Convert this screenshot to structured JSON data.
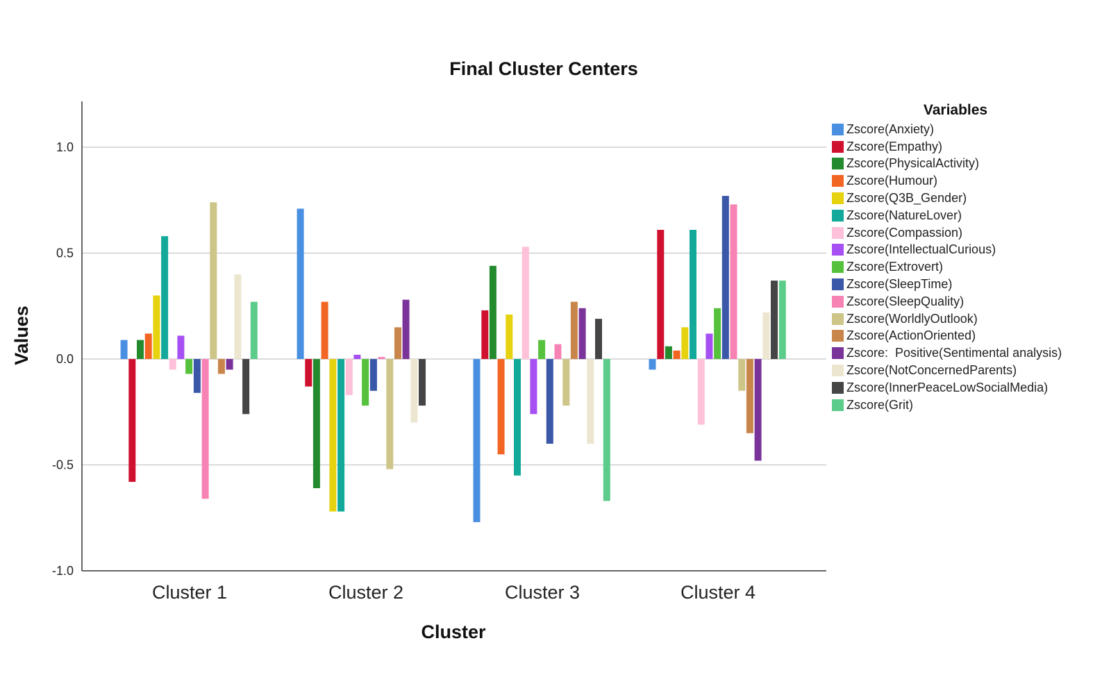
{
  "chart_data": {
    "type": "bar",
    "title": "Final Cluster Centers",
    "xlabel": "Cluster",
    "ylabel": "Values",
    "ylim": [
      -1.0,
      1.2
    ],
    "yticks": [
      "1.0",
      "0.5",
      "0.0",
      "-0.5",
      "-1.0"
    ],
    "ytick_values": [
      1.0,
      0.5,
      0.0,
      -0.5,
      -1.0
    ],
    "grid": true,
    "legend_title": "Variables",
    "legend_position": "right",
    "categories": [
      "Cluster 1",
      "Cluster 2",
      "Cluster 3",
      "Cluster 4"
    ],
    "series": [
      {
        "name": "Zscore(Anxiety)",
        "color": "#4a90e2",
        "values": [
          0.09,
          0.71,
          -0.77,
          -0.05
        ]
      },
      {
        "name": "Zscore(Empathy)",
        "color": "#d0102f",
        "values": [
          -0.58,
          -0.13,
          0.23,
          0.61
        ]
      },
      {
        "name": "Zscore(PhysicalActivity)",
        "color": "#248a2e",
        "values": [
          0.09,
          -0.61,
          0.44,
          0.06
        ]
      },
      {
        "name": "Zscore(Humour)",
        "color": "#f26522",
        "values": [
          0.12,
          0.27,
          -0.45,
          0.04
        ]
      },
      {
        "name": "Zscore(Q3B_Gender)",
        "color": "#e6d20f",
        "values": [
          0.3,
          -0.72,
          0.21,
          0.15
        ]
      },
      {
        "name": "Zscore(NatureLover)",
        "color": "#12a99a",
        "values": [
          0.58,
          -0.72,
          -0.55,
          0.61
        ]
      },
      {
        "name": "Zscore(Compassion)",
        "color": "#ffc0da",
        "values": [
          -0.05,
          -0.17,
          0.53,
          -0.31
        ]
      },
      {
        "name": "Zscore(IntellectualCurious)",
        "color": "#a64ff2",
        "values": [
          0.11,
          0.02,
          -0.26,
          0.12
        ]
      },
      {
        "name": "Zscore(Extrovert)",
        "color": "#56c13c",
        "values": [
          -0.07,
          -0.22,
          0.09,
          0.24
        ]
      },
      {
        "name": "Zscore(SleepTime)",
        "color": "#3a57a8",
        "values": [
          -0.16,
          -0.15,
          -0.4,
          0.77
        ]
      },
      {
        "name": "Zscore(SleepQuality)",
        "color": "#f783b5",
        "values": [
          -0.66,
          0.01,
          0.07,
          0.73
        ]
      },
      {
        "name": "Zscore(WorldlyOutlook)",
        "color": "#cdc688",
        "values": [
          0.74,
          -0.52,
          -0.22,
          -0.15
        ]
      },
      {
        "name": "Zscore(ActionOriented)",
        "color": "#c9864a",
        "values": [
          -0.07,
          0.15,
          0.27,
          -0.35
        ]
      },
      {
        "name": "Zscore:  Positive(Sentimental analysis)",
        "color": "#7a3399",
        "values": [
          -0.05,
          0.28,
          0.24,
          -0.48
        ]
      },
      {
        "name": "Zscore(NotConcernedParents)",
        "color": "#ece6d0",
        "values": [
          0.4,
          -0.3,
          -0.4,
          0.22
        ]
      },
      {
        "name": "Zscore(InnerPeaceLowSocialMedia)",
        "color": "#454545",
        "values": [
          -0.26,
          -0.22,
          0.19,
          0.37
        ]
      },
      {
        "name": "Zscore(Grit)",
        "color": "#5ccc8a",
        "values": [
          0.27,
          null,
          -0.67,
          0.37
        ]
      }
    ]
  }
}
